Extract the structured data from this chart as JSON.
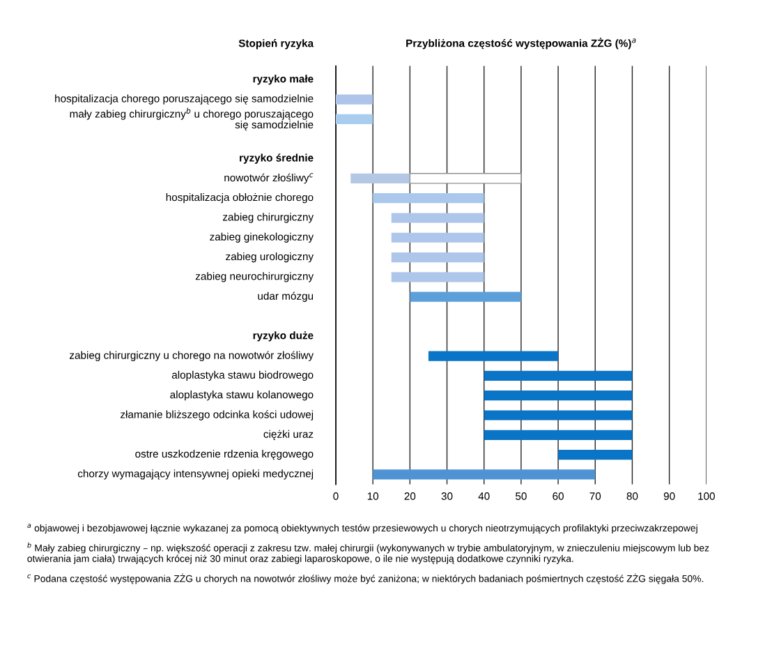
{
  "chart_data": {
    "type": "bar",
    "orientation": "horizontal",
    "title": "Przybliżona częstość występowania ZŻG (%)$^{a}$",
    "ylabel": "Stopień ryzyka",
    "categories": [
      "ryzyko małe",
      "hospitalizacja chorego poruszającego się samodzielnie",
      "mały zabieg chirurgiczny$^{b}$ u chorego poruszającego\nsię samodzielnie",
      null,
      "ryzyko średnie",
      "nowotwór złośliwy$^{c}$",
      "hospitalizacja obłożnie chorego",
      "zabieg chirurgiczny",
      "zabieg ginekologiczny",
      "zabieg urologiczny",
      "zabieg neurochirurgiczny",
      "udar mózgu",
      null,
      "ryzyko duże",
      "zabieg chirurgiczny u chorego na nowotwór złośliwy",
      "aloplastyka stawu biodrowego",
      "aloplastyka stawu kolanowego",
      "złamanie bliższego odcinka kości udowej",
      "ciężki uraz",
      "ostre uszkodzenie rdzenia kręgowego",
      "chorzy wymagający intensywnej opieki medycznej"
    ],
    "series": [
      {
        "base": [
          null,
          0,
          0,
          null,
          null,
          4,
          10,
          15,
          15,
          15,
          15,
          20,
          null,
          null,
          25,
          40,
          40,
          40,
          40,
          60,
          10
        ],
        "values": [
          null,
          10,
          10,
          null,
          null,
          16,
          30,
          25,
          25,
          25,
          25,
          30,
          null,
          null,
          35,
          40,
          40,
          40,
          40,
          20,
          60
        ],
        "colors": [
          null,
          "#aec4ea",
          "#a9cdee",
          null,
          null,
          "#b4c8e6",
          "#a9c8ec",
          "#aec6ea",
          "#aec6ea",
          "#aec6ea",
          "#aec6ea",
          "#5c9fd9",
          null,
          null,
          "#0a74c6",
          "#0a74c6",
          "#0a74c6",
          "#0a74c6",
          "#0a74c6",
          "#0a74c6",
          "#4f93d4"
        ]
      },
      {
        "base": [
          null,
          null,
          null,
          null,
          null,
          20,
          null,
          null,
          null,
          null,
          null,
          null,
          null,
          null,
          null,
          null,
          null,
          null,
          null,
          null,
          null
        ],
        "values": [
          null,
          null,
          null,
          null,
          null,
          30,
          null,
          null,
          null,
          null,
          null,
          null,
          null,
          null,
          null,
          null,
          null,
          null,
          null,
          null,
          null
        ],
        "color": "#ffffff"
      }
    ],
    "xlim": [
      0,
      100
    ],
    "xticks": [
      0,
      10,
      20,
      30,
      40,
      50,
      60,
      70,
      80,
      90,
      100
    ],
    "grid": "x",
    "annotations": [
      "$^{a}$ objawowej i bezobjawowej łącznie wykazanej za pomocą obiektywnych testów przesiewowych u chorych nieotrzymujących profilaktyki przeciwzakrzepowej",
      "$^{b}$ Mały zabieg chirurgiczny – np. większość operacji z zakresu tzw. małej chirurgii (wykonywanych w trybie ambulatoryjnym, w znieczuleniu miejscowym lub bez otwierania jam ciała) trwających krócej niż 30 minut oraz zabiegi laparoskopowe, o ile nie występują dodatkowe czynniki ryzyka.",
      "$^{c}$ Podana częstość występowania ZŻG u chorych na nowotwór złośliwy może być zaniżona; w niektórych badaniach pośmiertnych częstość ZŻG sięgała 50%."
    ]
  }
}
